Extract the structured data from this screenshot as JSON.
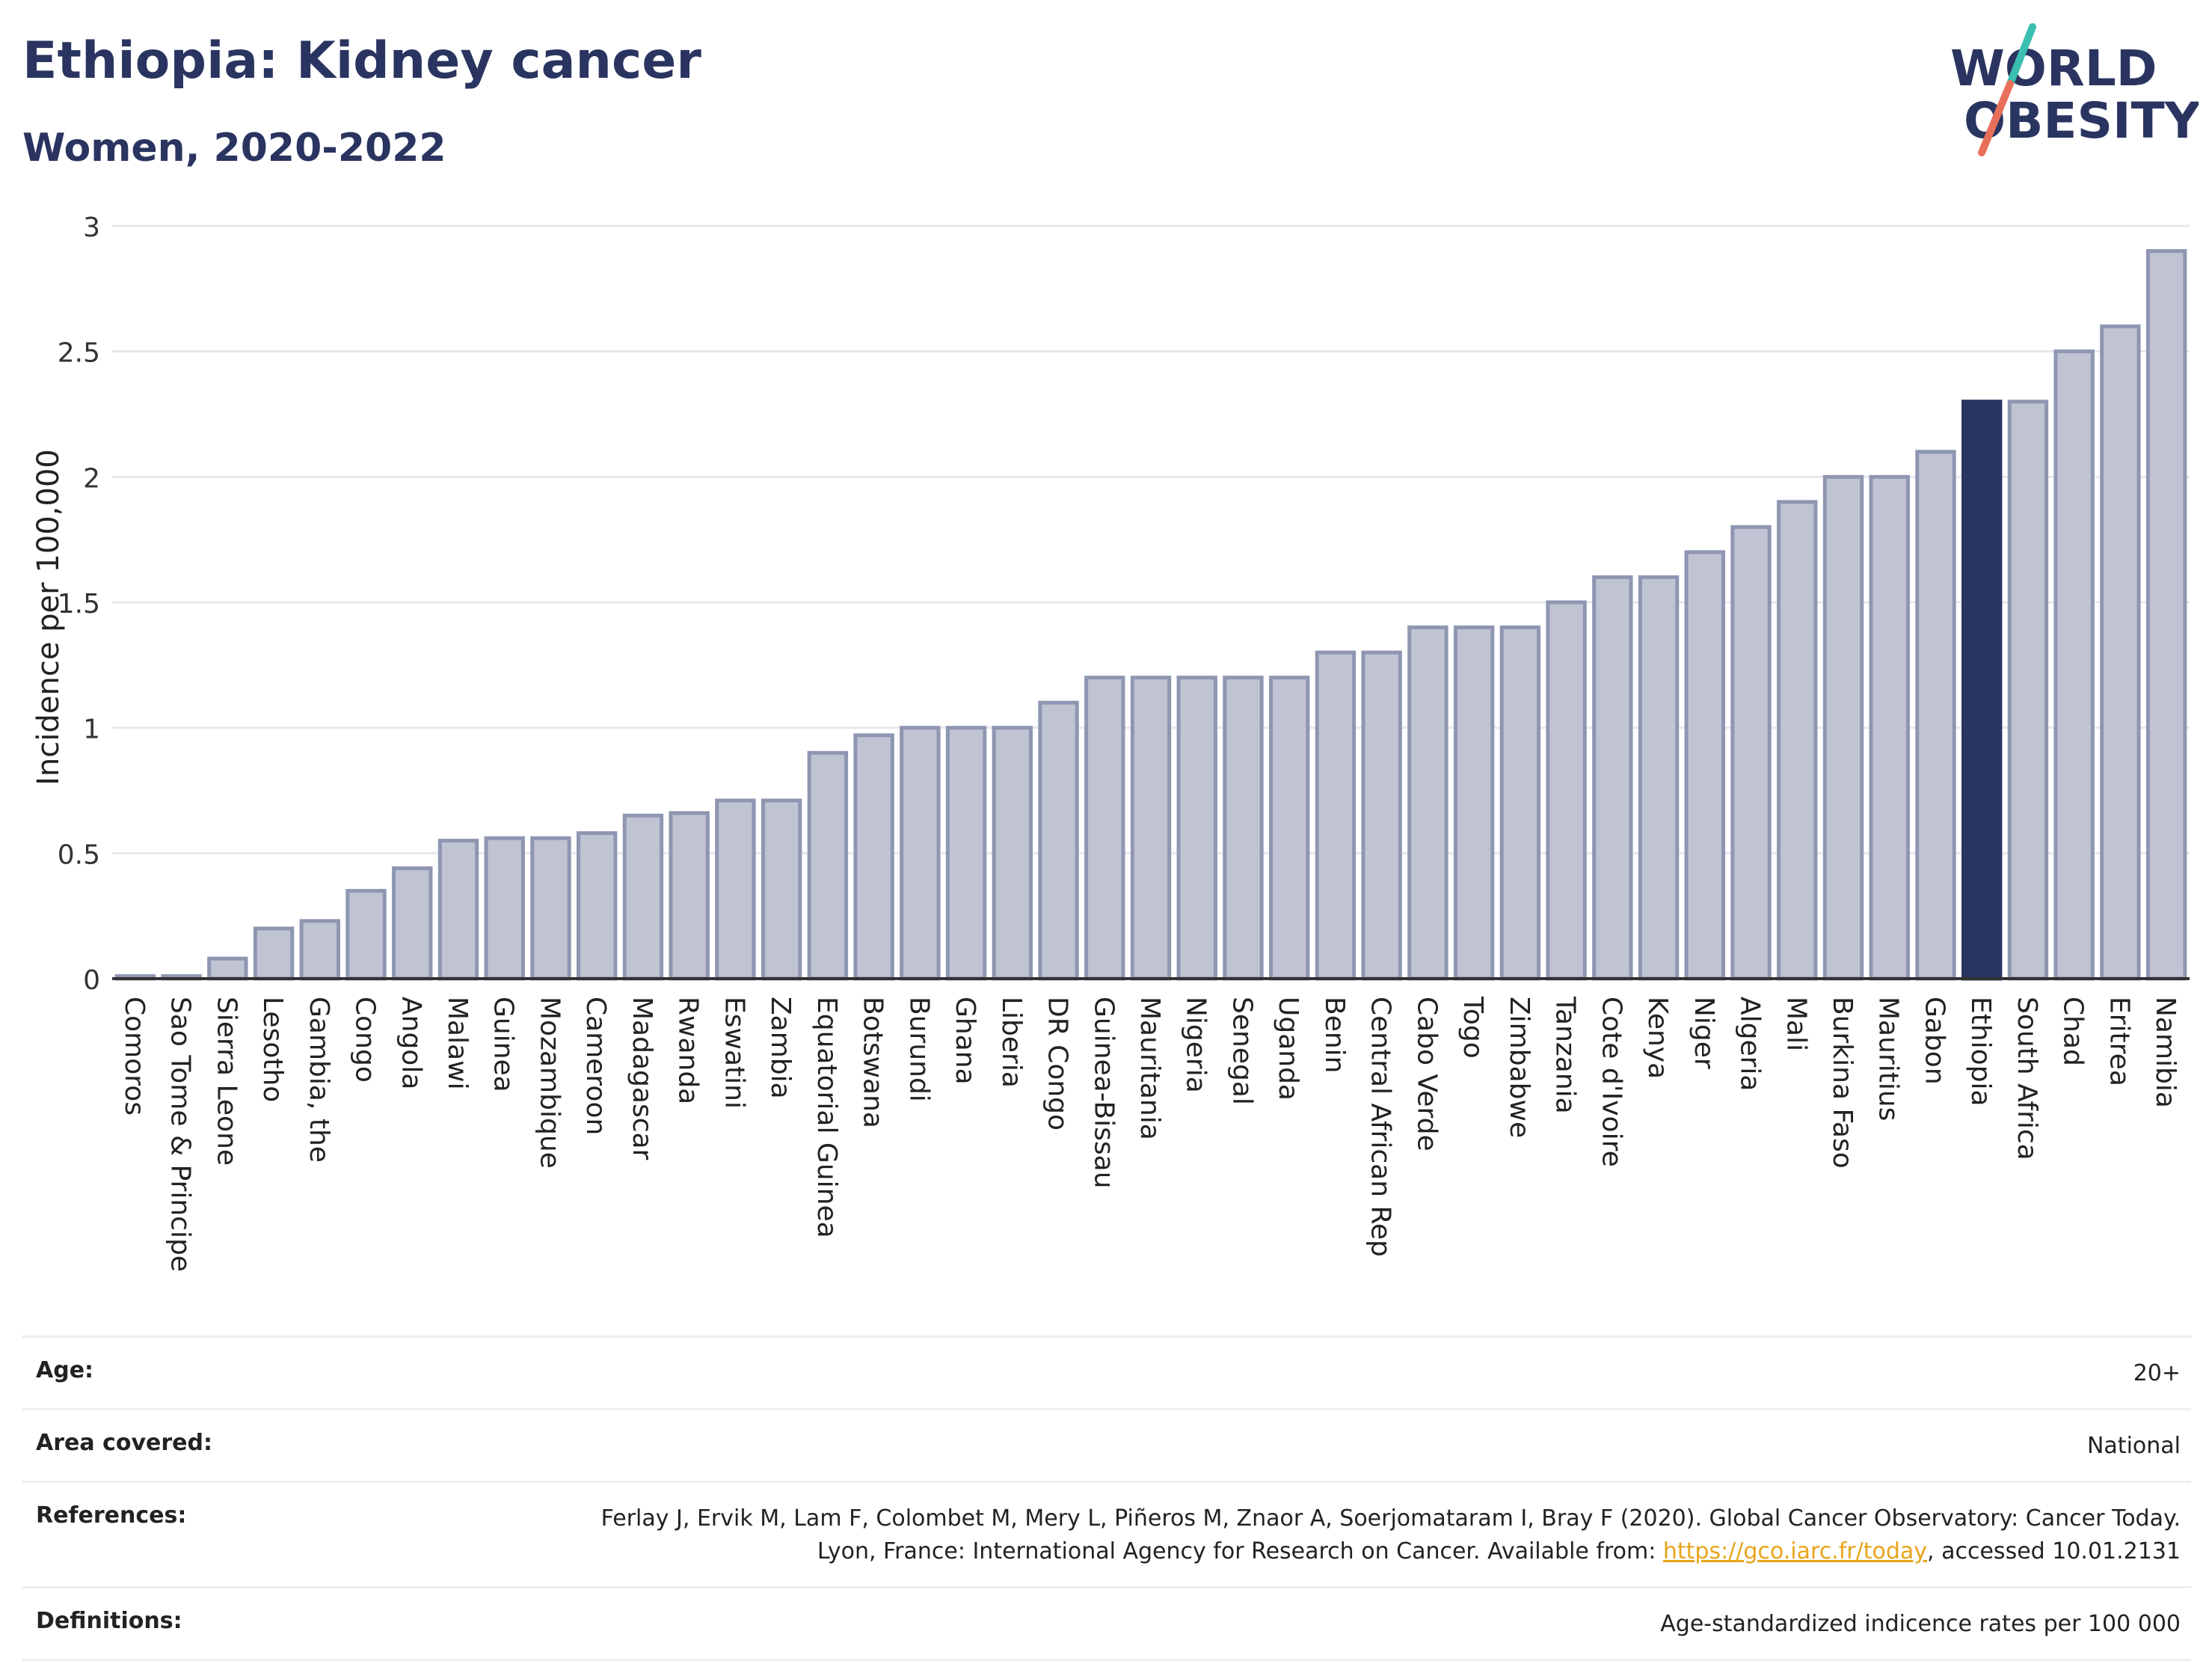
{
  "header": {
    "title": "Ethiopia: Kidney cancer",
    "subtitle": "Women, 2020-2022"
  },
  "logo": {
    "line1": "WORLD",
    "line2": "OBESITY",
    "colors": {
      "text": "#2a3460",
      "slash_top": "#3bbfb0",
      "slash_bottom": "#e8705a"
    }
  },
  "chart_data": {
    "type": "bar",
    "title": "Ethiopia: Kidney cancer",
    "subtitle": "Women, 2020-2022",
    "xlabel": "",
    "ylabel": "Incidence per 100,000",
    "ylim": [
      0,
      3
    ],
    "yticks": [
      0,
      0.5,
      1,
      1.5,
      2,
      2.5,
      3
    ],
    "ytick_labels": [
      "0",
      "0.5",
      "1",
      "1.5",
      "2",
      "2.5",
      "3"
    ],
    "grid": true,
    "highlight": "Ethiopia",
    "colors": {
      "bar": "#bfc3d2",
      "bar_border": "#8f96b2",
      "highlight": "#2a3460",
      "grid": "#e6e8ee",
      "axis": "#333333"
    },
    "categories": [
      "Comoros",
      "Sao Tome & Principe",
      "Sierra Leone",
      "Lesotho",
      "Gambia, the",
      "Congo",
      "Angola",
      "Malawi",
      "Guinea",
      "Mozambique",
      "Cameroon",
      "Madagascar",
      "Rwanda",
      "Eswatini",
      "Zambia",
      "Equatorial Guinea",
      "Botswana",
      "Burundi",
      "Ghana",
      "Liberia",
      "DR Congo",
      "Guinea-Bissau",
      "Mauritania",
      "Nigeria",
      "Senegal",
      "Uganda",
      "Benin",
      "Central African Rep",
      "Cabo Verde",
      "Togo",
      "Zimbabwe",
      "Tanzania",
      "Cote d'Ivoire",
      "Kenya",
      "Niger",
      "Algeria",
      "Mali",
      "Burkina Faso",
      "Mauritius",
      "Gabon",
      "Ethiopia",
      "South Africa",
      "Chad",
      "Eritrea",
      "Namibia"
    ],
    "values": [
      0.01,
      0.01,
      0.08,
      0.2,
      0.23,
      0.35,
      0.44,
      0.55,
      0.56,
      0.56,
      0.58,
      0.65,
      0.66,
      0.71,
      0.71,
      0.9,
      0.97,
      1.0,
      1.0,
      1.0,
      1.1,
      1.2,
      1.2,
      1.2,
      1.2,
      1.2,
      1.3,
      1.3,
      1.4,
      1.4,
      1.4,
      1.5,
      1.6,
      1.6,
      1.7,
      1.8,
      1.9,
      2.0,
      2.0,
      2.1,
      2.3,
      2.3,
      2.5,
      2.6,
      2.9
    ]
  },
  "footer": {
    "rows": [
      {
        "label": "Age:",
        "value": "20+"
      },
      {
        "label": "Area covered:",
        "value": "National"
      },
      {
        "label": "References:",
        "value_before": "Ferlay J, Ervik M, Lam F, Colombet M, Mery L, Piñeros M, Znaor A, Soerjomataram I, Bray F (2020). Global Cancer Observatory: Cancer Today. Lyon, France: International Agency for Research on Cancer. Available from: ",
        "link": "https://gco.iarc.fr/today",
        "value_after": ", accessed 10.01.2131"
      },
      {
        "label": "Definitions:",
        "value": "Age-standardized indicence rates per 100 000"
      }
    ]
  }
}
